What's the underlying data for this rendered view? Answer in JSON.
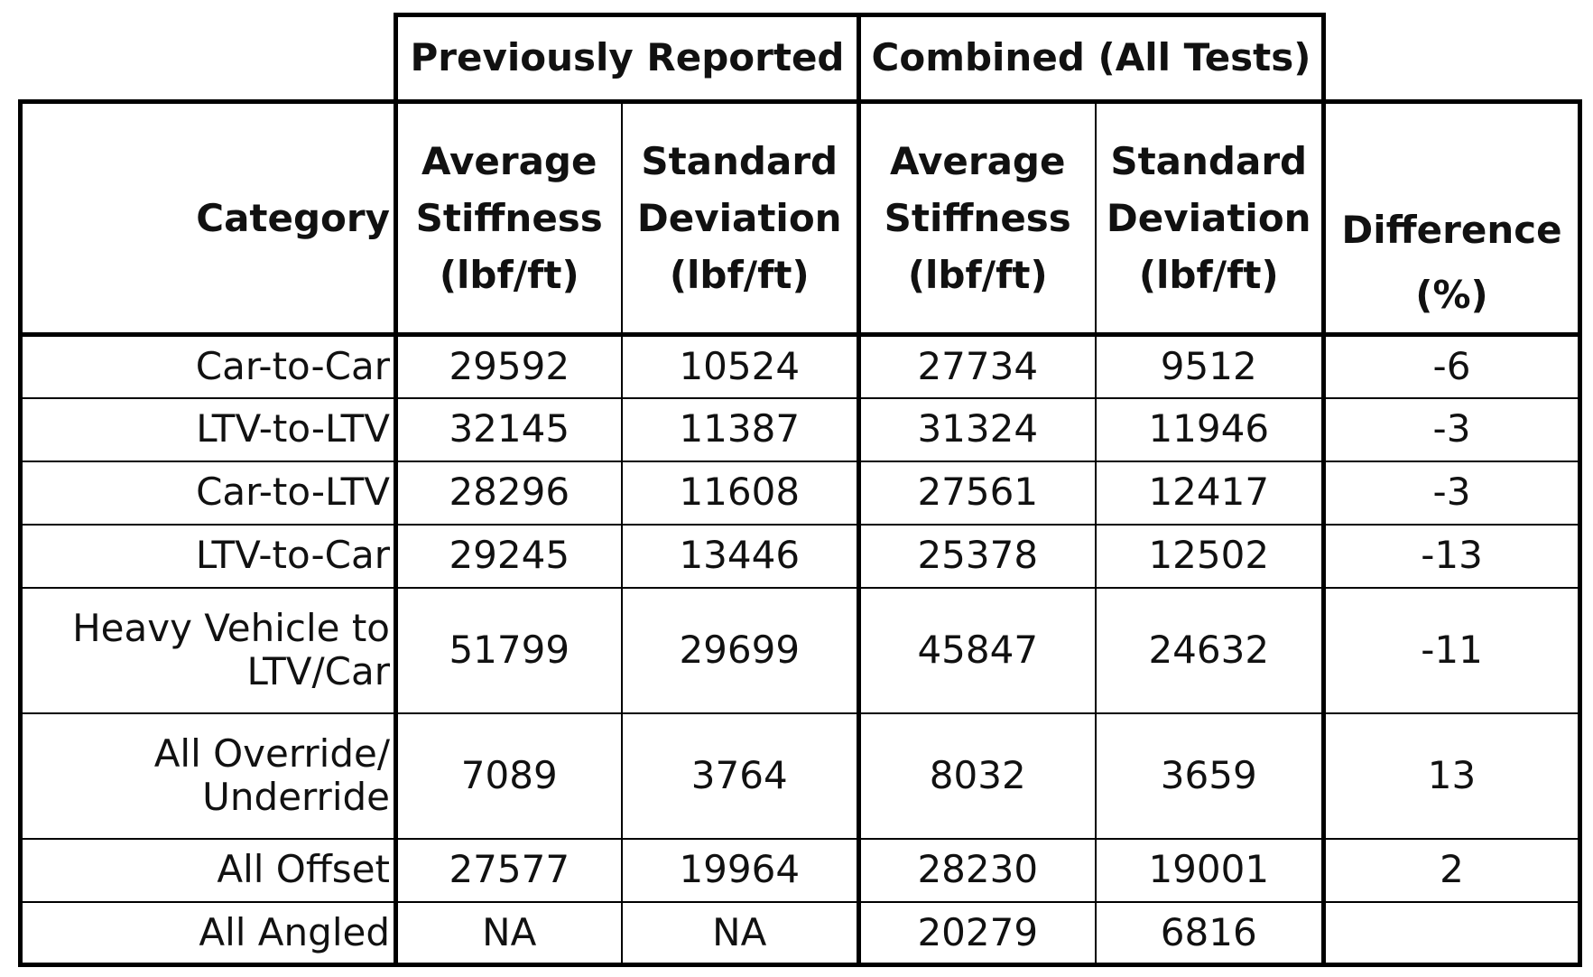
{
  "table": {
    "group_headers": {
      "previous": "Previously Reported",
      "combined": "Combined (All Tests)"
    },
    "column_headers": {
      "category": "Category",
      "prev_avg": [
        "Average",
        "Stiffness",
        "(lbf/ft)"
      ],
      "prev_std": [
        "Standard",
        "Deviation",
        "(lbf/ft)"
      ],
      "comb_avg": [
        "Average",
        "Stiffness",
        "(lbf/ft)"
      ],
      "comb_std": [
        "Standard",
        "Deviation",
        "(lbf/ft)"
      ],
      "difference": [
        "Difference",
        "(%)"
      ]
    },
    "rows": [
      {
        "category": [
          "Car-to-Car"
        ],
        "prev_avg": "29592",
        "prev_std": "10524",
        "comb_avg": "27734",
        "comb_std": "9512",
        "difference": "-6"
      },
      {
        "category": [
          "LTV-to-LTV"
        ],
        "prev_avg": "32145",
        "prev_std": "11387",
        "comb_avg": "31324",
        "comb_std": "11946",
        "difference": "-3"
      },
      {
        "category": [
          "Car-to-LTV"
        ],
        "prev_avg": "28296",
        "prev_std": "11608",
        "comb_avg": "27561",
        "comb_std": "12417",
        "difference": "-3"
      },
      {
        "category": [
          "LTV-to-Car"
        ],
        "prev_avg": "29245",
        "prev_std": "13446",
        "comb_avg": "25378",
        "comb_std": "12502",
        "difference": "-13"
      },
      {
        "category": [
          "Heavy Vehicle to",
          "LTV/Car"
        ],
        "prev_avg": "51799",
        "prev_std": "29699",
        "comb_avg": "45847",
        "comb_std": "24632",
        "difference": "-11"
      },
      {
        "category": [
          "All Override/",
          "Underride"
        ],
        "prev_avg": "7089",
        "prev_std": "3764",
        "comb_avg": "8032",
        "comb_std": "3659",
        "difference": "13"
      },
      {
        "category": [
          "All Offset"
        ],
        "prev_avg": "27577",
        "prev_std": "19964",
        "comb_avg": "28230",
        "comb_std": "19001",
        "difference": "2"
      },
      {
        "category": [
          "All Angled"
        ],
        "prev_avg": "NA",
        "prev_std": "NA",
        "comb_avg": "20279",
        "comb_std": "6816",
        "difference": ""
      }
    ]
  }
}
